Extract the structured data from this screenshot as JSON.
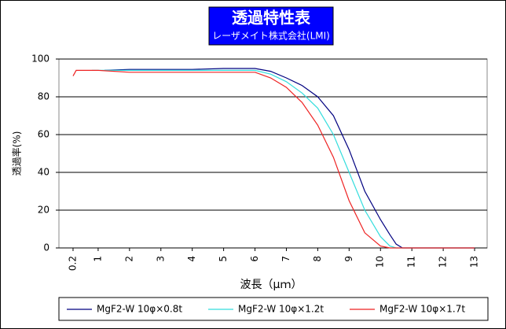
{
  "chart_data": {
    "type": "line",
    "title": "透過特性表",
    "subtitle": "レーザメイト株式会社(LMI)",
    "x_label": "波長（μｍ）",
    "y_label": "透過率(%)",
    "xlim": [
      -0.25,
      13.4
    ],
    "xticks": [
      0.2,
      1,
      2,
      3,
      4,
      5,
      6,
      7,
      8,
      9,
      10,
      11,
      12,
      13
    ],
    "ylim": [
      0,
      100
    ],
    "yticks": [
      0,
      20,
      40,
      60,
      80,
      100
    ],
    "grid": true,
    "series": [
      {
        "name": "MgF2-W 10φ×0.8t",
        "color": "#000080",
        "x": [
          1.2,
          2,
          3,
          4,
          5,
          6,
          6.5,
          7,
          7.5,
          8,
          8.5,
          9,
          9.5,
          10,
          10.3,
          10.5,
          10.7,
          11,
          13
        ],
        "values": [
          94,
          94.5,
          94.5,
          94.5,
          95,
          95,
          93.5,
          90,
          86,
          80,
          70,
          52,
          30,
          15,
          7,
          2,
          0,
          0,
          0
        ]
      },
      {
        "name": "MgF2-W 10φ×1.2t",
        "color": "#33dddd",
        "x": [
          0.8,
          2,
          3,
          4,
          5,
          6,
          6.5,
          7,
          7.5,
          8,
          8.5,
          9,
          9.5,
          10,
          10.3,
          10.5,
          13
        ],
        "values": [
          94,
          94,
          94,
          94,
          94,
          94,
          92,
          88,
          82,
          74,
          60,
          40,
          20,
          6,
          1,
          0,
          0
        ]
      },
      {
        "name": "MgF2-W 10φ×1.7t",
        "color": "#ee2222",
        "x": [
          0.2,
          0.3,
          1,
          2,
          3,
          4,
          5,
          6,
          6.5,
          7,
          7.5,
          8,
          8.5,
          9,
          9.5,
          10,
          10.3,
          13
        ],
        "values": [
          91,
          94,
          94,
          93,
          93,
          93,
          93,
          93,
          90,
          85,
          77,
          65,
          48,
          25,
          8,
          1,
          0,
          0
        ]
      }
    ]
  }
}
